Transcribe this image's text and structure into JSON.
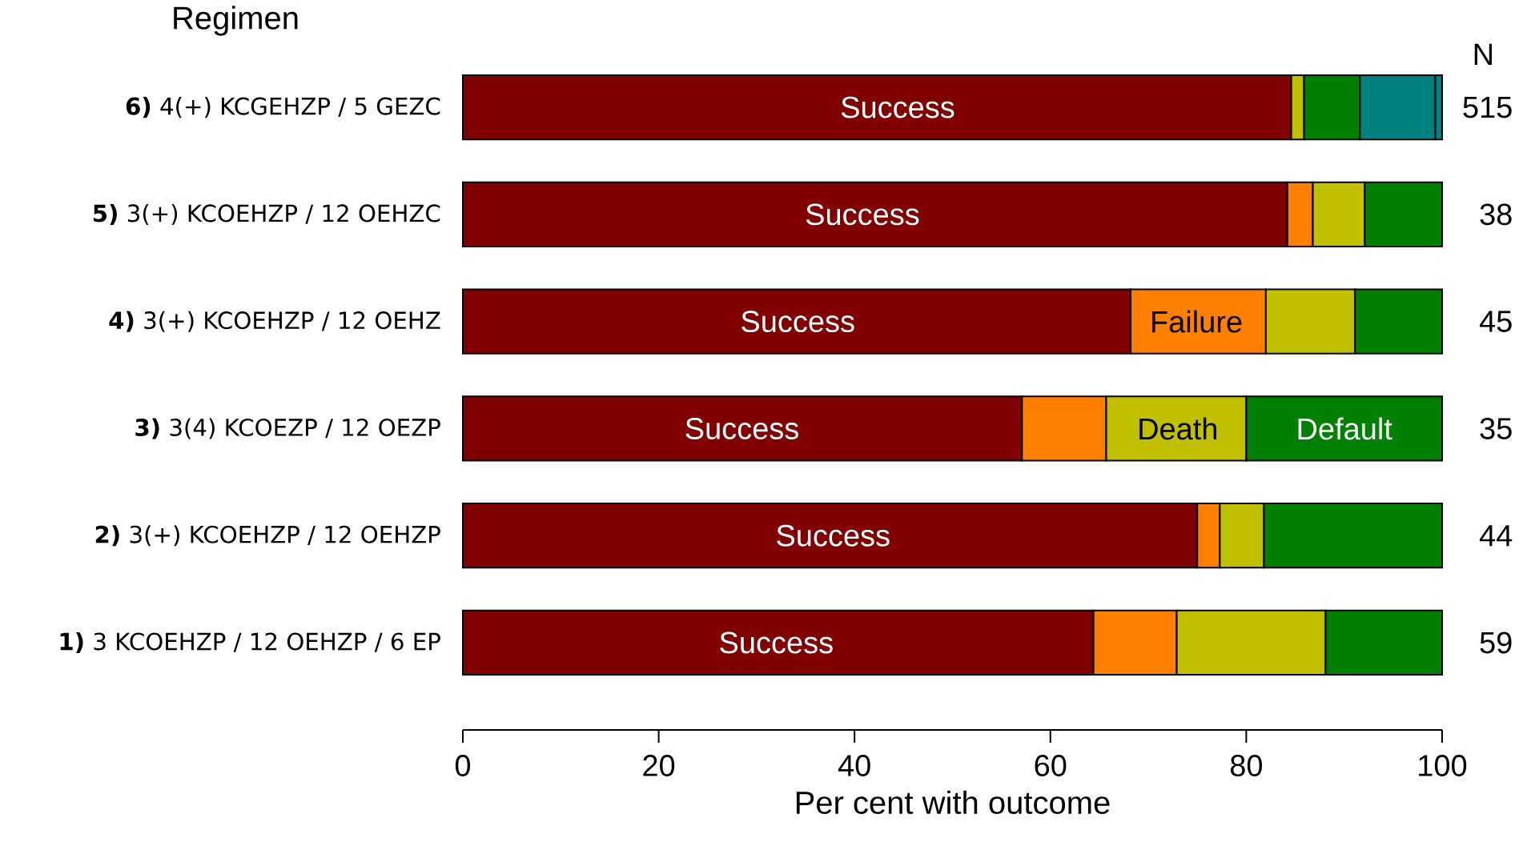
{
  "chart_data": {
    "type": "bar",
    "orientation": "horizontal",
    "stacked": true,
    "xlabel": "Per cent with outcome",
    "ylabel": "Regimen",
    "categories": [
      "**6)** 4(+) KCGEHZP / 5 GEZC",
      "**5)** 3(+) KCOEHZP / 12 OEHZC",
      "**4)** 3(+) KCOEHZP / 12 OEHZ",
      "**3)** 3(4) KCOEZP / 12 OEZP",
      "**2)** 3(+) KCOEHZP / 12 OEHZP",
      "**1)** 3 KCOEHZP / 12 OEHZP / 6 EP"
    ],
    "series": [
      {
        "color": "#800000",
        "values": [
          84.6,
          84.2,
          68.2,
          57.1,
          75.0,
          64.4
        ]
      },
      {
        "color": "#ff8000",
        "values": [
          null,
          2.6,
          13.8,
          8.6,
          2.3,
          8.5
        ]
      },
      {
        "color": "#c0c000",
        "values": [
          1.3,
          5.3,
          9.1,
          14.3,
          4.5,
          15.2
        ]
      },
      {
        "color": "#008000",
        "values": [
          5.7,
          7.9,
          8.9,
          20.0,
          18.2,
          11.9
        ]
      },
      {
        "color": "#008080",
        "values": [
          7.7,
          null,
          null,
          null,
          null,
          null
        ]
      },
      {
        "color": "#008080",
        "values": [
          0.7,
          null,
          null,
          null,
          null,
          null
        ]
      }
    ],
    "xlim": [
      0,
      100
    ],
    "xticks": [
      0,
      20,
      40,
      60,
      80,
      100
    ],
    "grid": false,
    "annotations": [
      "Success",
      "Success",
      "Success",
      "Success",
      "Success",
      "Success",
      "Failure",
      "Death",
      "Default",
      "N",
      "515",
      "38",
      "45",
      "35",
      "44",
      "59"
    ]
  }
}
